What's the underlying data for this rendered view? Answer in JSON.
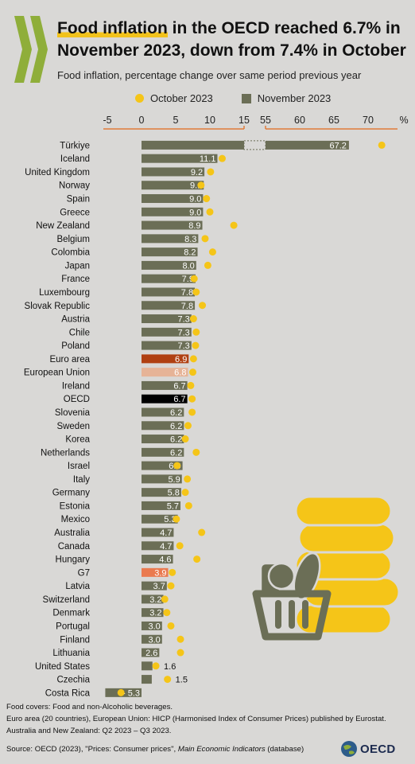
{
  "header": {
    "title_highlight": "Food inflation",
    "title_rest_line1": " in the OECD reached 6.7% in",
    "title_line2": "November 2023, down from 7.4% in October",
    "subtitle": "Food inflation, percentage change over same period previous year"
  },
  "legend": {
    "october": "October 2023",
    "november": "November 2023"
  },
  "colors": {
    "bar": "#6b6e56",
    "euro_area": "#b04012",
    "european_union": "#e6b397",
    "oecd": "#000000",
    "g7": "#ea7a4f",
    "october_dot": "#f5c518",
    "axis_accent": "#e07b39"
  },
  "chart_data": {
    "type": "bar",
    "orientation": "horizontal",
    "x_axis": {
      "broken": true,
      "segment1_ticks": [
        "-5",
        "0",
        "5",
        "10",
        "15"
      ],
      "segment2_ticks": [
        "55",
        "60",
        "65",
        "70"
      ],
      "unit": "%"
    },
    "categories": [
      "Türkiye",
      "Iceland",
      "United Kingdom",
      "Norway",
      "Spain",
      "Greece",
      "New Zealand",
      "Belgium",
      "Colombia",
      "Japan",
      "France",
      "Luxembourg",
      "Slovak Republic",
      "Austria",
      "Chile",
      "Poland",
      "Euro area",
      "European Union",
      "Ireland",
      "OECD",
      "Slovenia",
      "Sweden",
      "Korea",
      "Netherlands",
      "Israel",
      "Italy",
      "Germany",
      "Estonia",
      "Mexico",
      "Australia",
      "Canada",
      "Hungary",
      "G7",
      "Latvia",
      "Switzerland",
      "Denmark",
      "Portugal",
      "Finland",
      "Lithuania",
      "United States",
      "Czechia",
      "Costa Rica"
    ],
    "series": [
      {
        "name": "November 2023",
        "values": [
          67.2,
          11.1,
          9.2,
          9.1,
          9.0,
          9.0,
          8.9,
          8.3,
          8.2,
          8.0,
          7.9,
          7.8,
          7.8,
          7.3,
          7.3,
          7.3,
          6.9,
          6.8,
          6.7,
          6.7,
          6.2,
          6.2,
          6.2,
          6.2,
          6.0,
          5.9,
          5.8,
          5.7,
          5.3,
          4.7,
          4.7,
          4.6,
          3.9,
          3.7,
          3.2,
          3.2,
          3.0,
          3.0,
          2.6,
          1.6,
          1.5,
          -5.3
        ],
        "labels": [
          "67.2",
          "11.1",
          "9.2",
          "9.1",
          "9.0",
          "9.0",
          "8.9",
          "8.3",
          "8.2",
          "8.0",
          "7.9",
          "7.8",
          "7.8",
          "7.3",
          "7.3",
          "7.3",
          "6.9",
          "6.8",
          "6.7",
          "6.7",
          "6.2",
          "6.2",
          "6.2",
          "6.2",
          "6.0",
          "5.9",
          "5.8",
          "5.7",
          "5.3",
          "4.7",
          "4.7",
          "4.6",
          "3.9",
          "3.7",
          "3.2",
          "3.2",
          "3.0",
          "3.0",
          "2.6",
          "1.6",
          "1.5",
          "- 5.3"
        ]
      },
      {
        "name": "October 2023",
        "values": [
          72.0,
          11.8,
          10.1,
          8.7,
          9.5,
          10.0,
          13.5,
          9.3,
          10.4,
          9.7,
          7.7,
          8.0,
          8.9,
          7.6,
          8.0,
          7.9,
          7.6,
          7.5,
          7.2,
          7.4,
          7.4,
          6.8,
          6.4,
          8.0,
          5.2,
          6.7,
          6.4,
          6.9,
          5.1,
          8.8,
          5.6,
          8.1,
          4.5,
          4.3,
          3.4,
          3.7,
          4.3,
          5.7,
          5.7,
          2.1,
          3.8,
          -3.0
        ]
      }
    ],
    "highlight": {
      "Euro area": "euro_area",
      "European Union": "european_union",
      "OECD": "oecd",
      "G7": "g7"
    }
  },
  "footer": {
    "note1": "Food covers: Food and non-Alcoholic beverages.",
    "note2": "Euro area (20 countries), European Union: HICP (Harmonised Index of Consumer Prices) published by Eurostat.",
    "note3": "Australia and New Zealand:  Q2 2023 – Q3 2023.",
    "source_prefix": "Source: OECD (2023), \"Prices: Consumer prices\", ",
    "source_title": "Main Economic Indicators",
    "source_suffix": " (database)",
    "logo_text": "OECD"
  }
}
